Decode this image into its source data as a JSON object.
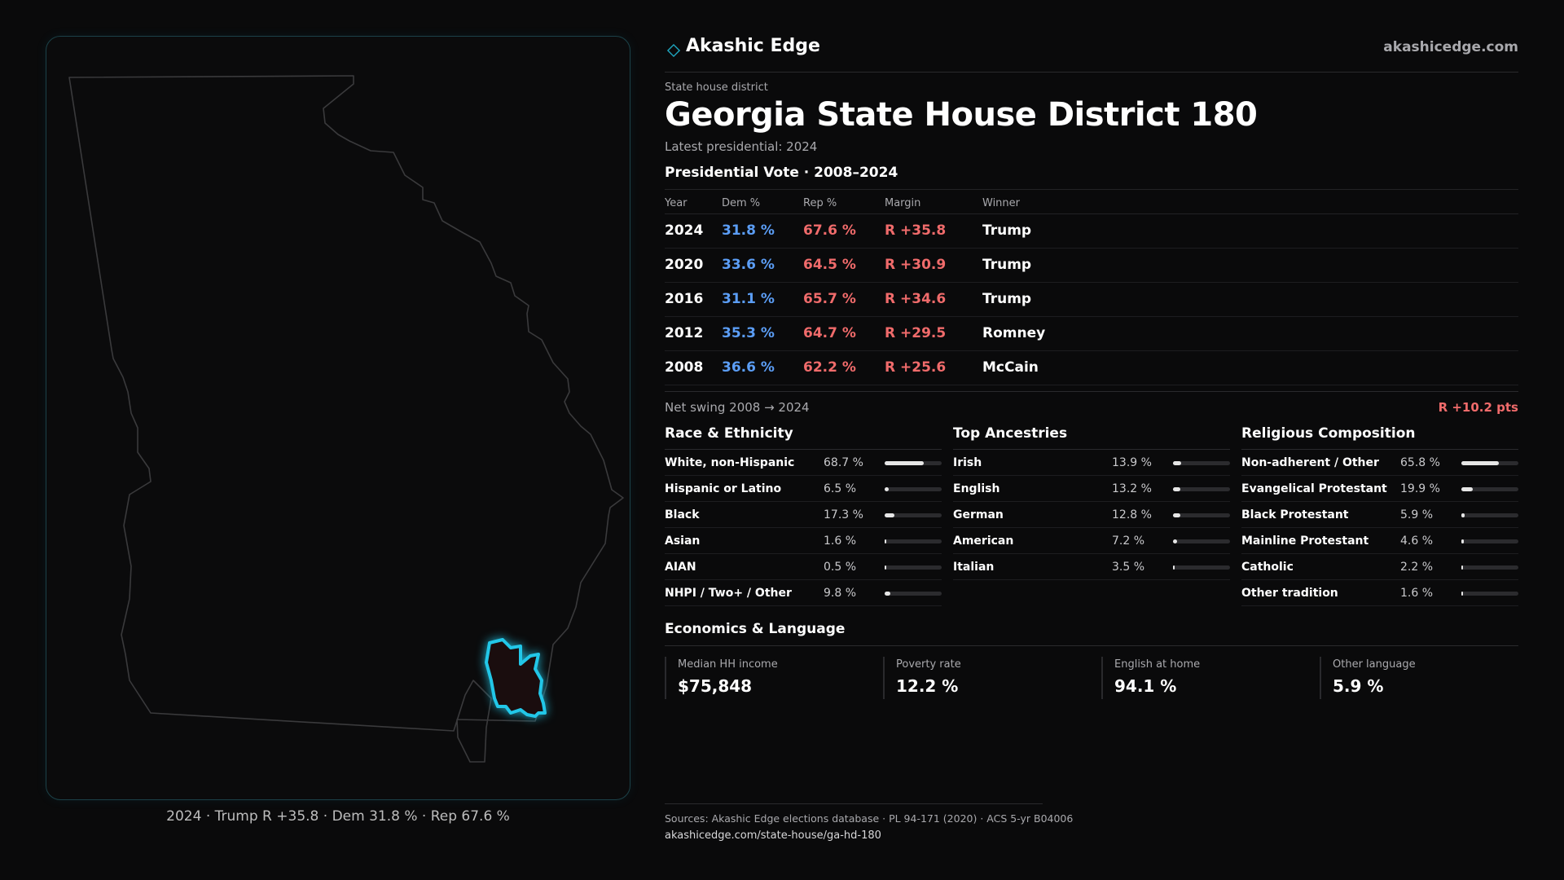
{
  "map": {
    "caption": "2024 · Trump R +35.8 · Dem 31.8 % · Rep 67.6 %",
    "state_outline_color": "#3a3a3c",
    "district_highlight_color": "#22c7e8"
  },
  "header": {
    "brand": "Akashic Edge",
    "brand_icon": "diamond-icon",
    "site": "akashicedge.com"
  },
  "district": {
    "kicker": "State house district",
    "title": "Georgia State House District 180",
    "latest": "Latest presidential: 2024"
  },
  "vote": {
    "section_title": "Presidential Vote · 2008–2024",
    "headers": {
      "year": "Year",
      "dem": "Dem %",
      "rep": "Rep %",
      "margin": "Margin",
      "winner": "Winner"
    },
    "rows": [
      {
        "year": "2024",
        "dem": "31.8 %",
        "rep": "67.6 %",
        "margin": "R +35.8",
        "winner": "Trump"
      },
      {
        "year": "2020",
        "dem": "33.6 %",
        "rep": "64.5 %",
        "margin": "R +30.9",
        "winner": "Trump"
      },
      {
        "year": "2016",
        "dem": "31.1 %",
        "rep": "65.7 %",
        "margin": "R +34.6",
        "winner": "Trump"
      },
      {
        "year": "2012",
        "dem": "35.3 %",
        "rep": "64.7 %",
        "margin": "R +29.5",
        "winner": "Romney"
      },
      {
        "year": "2008",
        "dem": "36.6 %",
        "rep": "62.2 %",
        "margin": "R +25.6",
        "winner": "McCain"
      }
    ],
    "swing_label": "Net swing 2008 → 2024",
    "swing_value": "R +10.2 pts",
    "colors": {
      "dem": "#5b9df5",
      "rep": "#f06b6b"
    }
  },
  "race": {
    "title": "Race & Ethnicity",
    "rows": [
      {
        "label": "White, non-Hispanic",
        "value": "68.7 %",
        "pct": 68.7
      },
      {
        "label": "Hispanic or Latino",
        "value": "6.5 %",
        "pct": 6.5
      },
      {
        "label": "Black",
        "value": "17.3 %",
        "pct": 17.3
      },
      {
        "label": "Asian",
        "value": "1.6 %",
        "pct": 1.6
      },
      {
        "label": "AIAN",
        "value": "0.5 %",
        "pct": 0.5
      },
      {
        "label": "NHPI / Two+ / Other",
        "value": "9.8 %",
        "pct": 9.8
      }
    ]
  },
  "ancestry": {
    "title": "Top Ancestries",
    "rows": [
      {
        "label": "Irish",
        "value": "13.9 %",
        "pct": 13.9
      },
      {
        "label": "English",
        "value": "13.2 %",
        "pct": 13.2
      },
      {
        "label": "German",
        "value": "12.8 %",
        "pct": 12.8
      },
      {
        "label": "American",
        "value": "7.2 %",
        "pct": 7.2
      },
      {
        "label": "Italian",
        "value": "3.5 %",
        "pct": 3.5
      }
    ]
  },
  "religion": {
    "title": "Religious Composition",
    "rows": [
      {
        "label": "Non-adherent / Other",
        "value": "65.8 %",
        "pct": 65.8
      },
      {
        "label": "Evangelical Protestant",
        "value": "19.9 %",
        "pct": 19.9
      },
      {
        "label": "Black Protestant",
        "value": "5.9 %",
        "pct": 5.9
      },
      {
        "label": "Mainline Protestant",
        "value": "4.6 %",
        "pct": 4.6
      },
      {
        "label": "Catholic",
        "value": "2.2 %",
        "pct": 2.2
      },
      {
        "label": "Other tradition",
        "value": "1.6 %",
        "pct": 1.6
      }
    ]
  },
  "economics": {
    "title": "Economics & Language",
    "cards": [
      {
        "label": "Median HH income",
        "value": "$75,848"
      },
      {
        "label": "Poverty rate",
        "value": "12.2 %"
      },
      {
        "label": "English at home",
        "value": "94.1 %"
      },
      {
        "label": "Other language",
        "value": "5.9 %"
      }
    ]
  },
  "footer": {
    "sources": "Sources: Akashic Edge elections database · PL 94-171 (2020) · ACS 5-yr B04006",
    "link": "akashicedge.com/state-house/ga-hd-180"
  }
}
